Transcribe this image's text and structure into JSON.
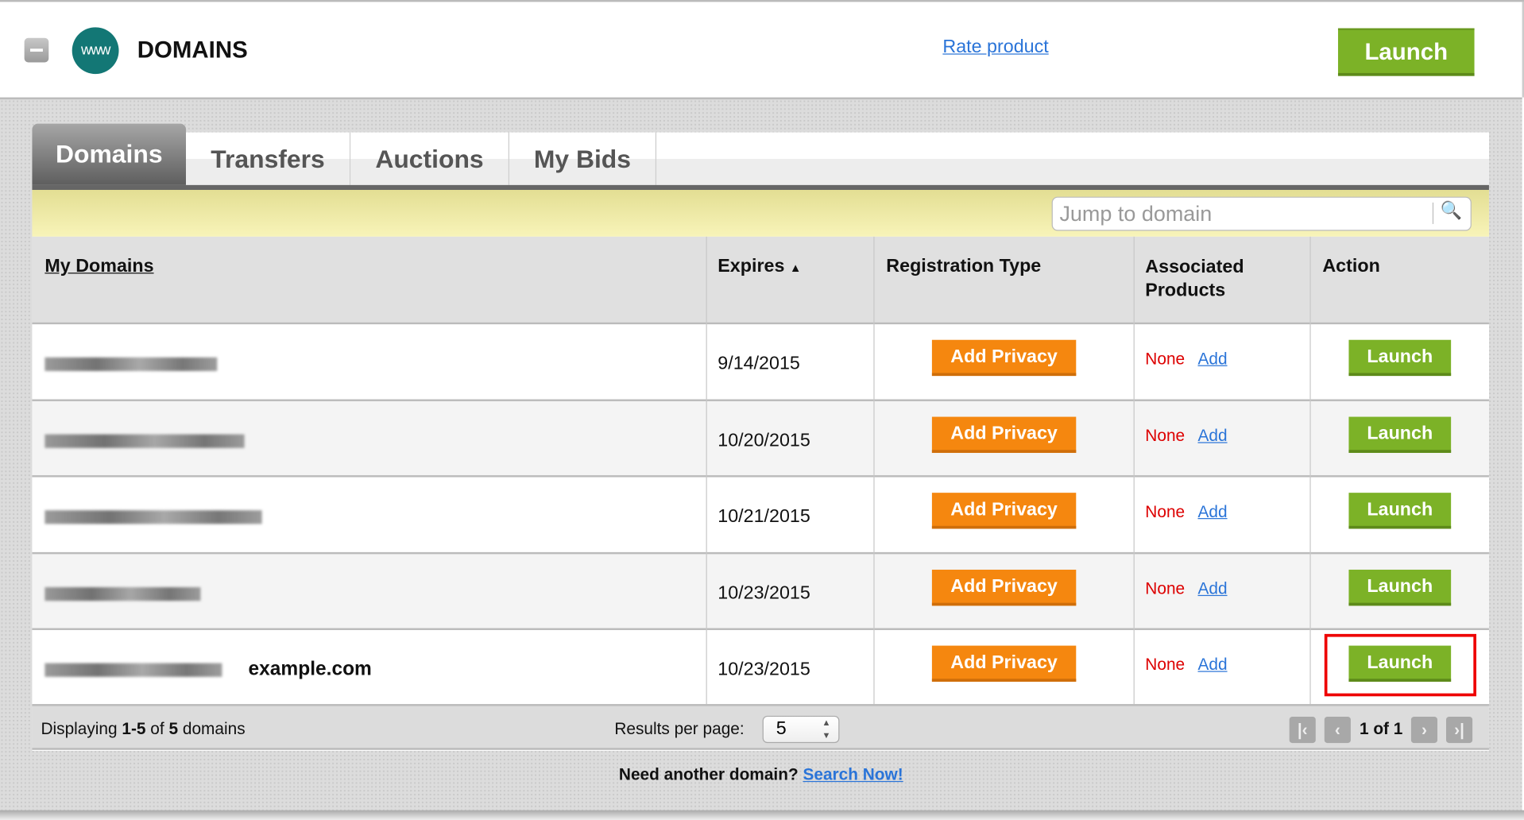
{
  "header": {
    "title": "DOMAINS",
    "logo_text": "www",
    "rate_link": "Rate product",
    "launch": "Launch"
  },
  "tabs": [
    {
      "label": "Domains",
      "active": true
    },
    {
      "label": "Transfers"
    },
    {
      "label": "Auctions"
    },
    {
      "label": "My Bids"
    }
  ],
  "search": {
    "placeholder": "Jump to domain",
    "icon": "search-icon"
  },
  "table": {
    "headers": {
      "domain": "My Domains",
      "expires": "Expires",
      "reg_type": "Registration Type",
      "assoc": "Associated Products",
      "action": "Action"
    },
    "sort": {
      "column": "Expires",
      "direction": "ascending"
    },
    "rows": [
      {
        "expires": "9/14/2015",
        "privacy": "Add Privacy",
        "assoc": "None",
        "add": "Add",
        "action": "Launch"
      },
      {
        "expires": "10/20/2015",
        "privacy": "Add Privacy",
        "assoc": "None",
        "add": "Add",
        "action": "Launch"
      },
      {
        "expires": "10/21/2015",
        "privacy": "Add Privacy",
        "assoc": "None",
        "add": "Add",
        "action": "Launch"
      },
      {
        "expires": "10/23/2015",
        "privacy": "Add Privacy",
        "assoc": "None",
        "add": "Add",
        "action": "Launch"
      },
      {
        "expires": "10/23/2015",
        "privacy": "Add Privacy",
        "assoc": "None",
        "add": "Add",
        "action": "Launch",
        "annotation": "example.com"
      }
    ]
  },
  "footer": {
    "displaying_prefix": "Displaying ",
    "range": "1-5",
    "of": " of ",
    "total": "5",
    "suffix": " domains",
    "rpp_label": "Results per page:",
    "rpp_value": "5",
    "page_info": "1 of 1"
  },
  "bottom": {
    "text": "Need another domain?",
    "link": "Search Now!"
  },
  "colors": {
    "launch_green": "#7cb227",
    "privacy_orange": "#f5870f",
    "link_blue": "#2a74d8",
    "none_red": "#dd0000",
    "highlight": "#ee0000"
  }
}
